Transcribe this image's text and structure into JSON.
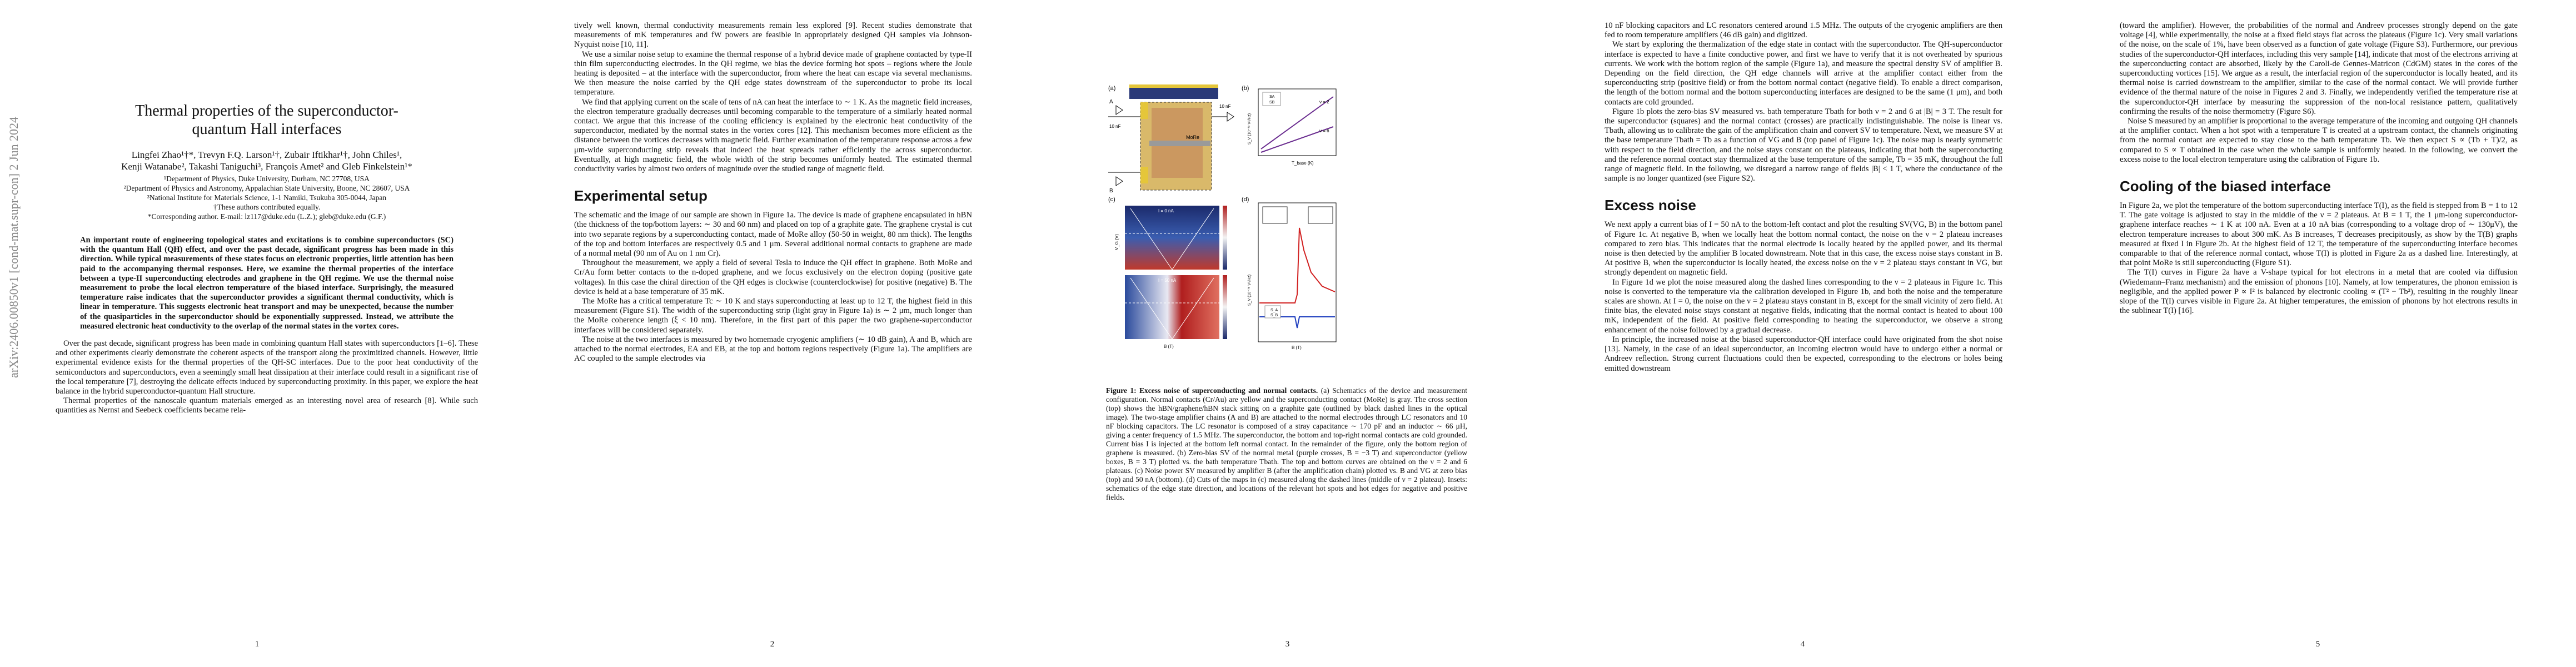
{
  "arxiv_stamp": "arXiv:2406.00850v1  [cond-mat.supr-con]  2 Jun 2024",
  "page1": {
    "title": "Thermal properties of the superconductor-quantum Hall interfaces",
    "authors_line1": "Lingfei Zhao¹†*, Trevyn F.Q. Larson¹†, Zubair Iftikhar¹†, John Chiles¹,",
    "authors_line2": "Kenji Watanabe², Takashi Taniguchi³, François Amet² and Gleb Finkelstein¹*",
    "affil1": "¹Department of Physics, Duke University, Durham, NC 27708, USA",
    "affil2": "²Department of Physics and Astronomy, Appalachian State University, Boone, NC 28607, USA",
    "affil3": "³National Institute for Materials Science, 1-1 Namiki, Tsukuba 305-0044, Japan",
    "affil4": "†These authors contributed equally.",
    "affil5": "*Corresponding author. E-mail: lz117@duke.edu (L.Z.); gleb@duke.edu (G.F.)",
    "abstract": "An important route of engineering topological states and excitations is to combine superconductors (SC) with the quantum Hall (QH) effect, and over the past decade, significant progress has been made in this direction. While typical measurements of these states focus on electronic properties, little attention has been paid to the accompanying thermal responses. Here, we examine the thermal properties of the interface between a type-II superconducting electrodes and graphene in the QH regime. We use the thermal noise measurement to probe the local electron temperature of the biased interface. Surprisingly, the measured temperature raise indicates that the superconductor provides a significant thermal conductivity, which is linear in temperature. This suggests electronic heat transport and may be unexpected, because the number of the quasiparticles in the superconductor should be exponentially suppressed. Instead, we attribute the measured electronic heat conductivity to the overlap of the normal states in the vortex cores.",
    "p1": "Over the past decade, significant progress has been made in combining quantum Hall states with superconductors [1–6]. These and other experiments clearly demonstrate the coherent aspects of the transport along the proximitized channels. However, little experimental evidence exists for the thermal properties of the QH-SC interfaces. Due to the poor heat conductivity of the semiconductors and superconductors, even a seemingly small heat dissipation at their interface could result in a significant rise of the local temperature [7], destroying the delicate effects induced by superconducting proximity. In this paper, we explore the heat balance in the hybrid superconductor-quantum Hall structure.",
    "p2": "Thermal properties of the nanoscale quantum materials emerged as an interesting novel area of research [8]. While such quantities as Nernst and Seebeck coefficients became rela-",
    "page_number": "1"
  },
  "page2": {
    "p1": "tively well known, thermal conductivity measurements remain less explored [9]. Recent studies demonstrate that measurements of mK temperatures and fW powers are feasible in appropriately designed QH samples via Johnson-Nyquist noise [10, 11].",
    "p2": "We use a similar noise setup to examine the thermal response of a hybrid device made of graphene contacted by type-II thin film superconducting electrodes. In the QH regime, we bias the device forming hot spots – regions where the Joule heating is deposited – at the interface with the superconductor, from where the heat can escape via several mechanisms. We then measure the noise carried by the QH edge states downstream of the superconductor to probe its local temperature.",
    "p3": "We find that applying current on the scale of tens of nA can heat the interface to ∼ 1 K. As the magnetic field increases, the electron temperature gradually decreases until becoming comparable to the temperature of a similarly heated normal contact. We argue that this increase of the cooling efficiency is explained by the electronic heat conductivity of the superconductor, mediated by the normal states in the vortex cores [12]. This mechanism becomes more efficient as the distance between the vortices decreases with magnetic field. Further examination of the temperature response across a few μm-wide superconducting strip reveals that indeed the heat spreads rather efficiently the across superconductor. Eventually, at high magnetic field, the whole width of the strip becomes uniformly heated. The estimated thermal conductivity varies by almost two orders of magnitude over the studied range of magnetic field.",
    "section": "Experimental setup",
    "p4": "The schematic and the image of our sample are shown in Figure 1a. The device is made of graphene encapsulated in hBN (the thickness of the top/bottom layers: ∼ 30 and 60 nm) and placed on top of a graphite gate. The graphene crystal is cut into two separate regions by a superconducting contact, made of MoRe alloy (50-50 in weight, 80 nm thick). The lengths of the top and bottom interfaces are respectively 0.5 and 1 μm. Several additional normal contacts to graphene are made of a normal metal (90 nm of Au on 1 nm Cr).",
    "p5": "Throughout the measurement, we apply a field of several Tesla to induce the QH effect in graphene. Both MoRe and Cr/Au form better contacts to the n-doped graphene, and we focus exclusively on the electron doping (positive gate voltages). In this case the chiral direction of the QH edges is clockwise (counterclockwise) for positive (negative) B. The device is held at a base temperature of 35 mK.",
    "p6": "The MoRe has a critical temperature Tc ∼ 10 K and stays superconducting at least up to 12 T, the highest field in this measurement (Figure S1). The width of the superconducting strip (light gray in Figure 1a) is ∼ 2 μm, much longer than the MoRe coherence length (ξ < 10 nm). Therefore, in the first part of this paper the two graphene-superconductor interfaces will be considered separately.",
    "p7": "The noise at the two interfaces is measured by two homemade cryogenic amplifiers (∼ 10 dB gain), A and B, which are attached to the normal electrodes, EA and EB, at the top and bottom regions respectively (Figure 1a). The amplifiers are AC coupled to the sample electrodes via",
    "page_number": "2"
  },
  "page3": {
    "fig_labels": {
      "a": "(a)",
      "b": "(b)",
      "c": "(c)",
      "d": "(d)"
    },
    "scheme": {
      "top_left": "10 nF",
      "mid_label": "MoRe",
      "side_a": "A",
      "side_b": "B",
      "cap_top": "10 nF",
      "rl": "R_L",
      "lc": "LC"
    },
    "panel_b": {
      "ylabel": "S_V (10⁻¹⁹ V²/Hz)",
      "xlabel": "T_base (K)",
      "legend": [
        "SA",
        "SB"
      ],
      "label_2": "ν = 2",
      "label_6": "ν = 6"
    },
    "panel_c": {
      "top_label": "I = 0 nA",
      "bottom_label": "I = 50 nA",
      "xlabel": "B (T)",
      "ylabel": "V_G (V)",
      "cbar_top": "R (kΩ)",
      "cbar_bottom": "S_V (10⁻¹⁸ V²/Hz)"
    },
    "panel_d": {
      "ylabel": "S_V (10⁻¹⁸ V²/Hz)",
      "xlabel": "B (T)",
      "legend": [
        "S_A",
        "S_B"
      ],
      "ticks": [
        "-4",
        "-2",
        "0",
        "2",
        "4"
      ]
    },
    "caption_bold": "Figure 1: Excess noise of superconducting and normal contacts.",
    "caption": "(a) Schematics of the device and measurement configuration. Normal contacts (Cr/Au) are yellow and the superconducting contact (MoRe) is gray. The cross section (top) shows the hBN/graphene/hBN stack sitting on a graphite gate (outlined by black dashed lines in the optical image). The two-stage amplifier chains (A and B) are attached to the normal electrodes through LC resonators and 10 nF blocking capacitors. The LC resonator is composed of a stray capacitance ∼ 170 pF and an inductor ∼ 66 μH, giving a center frequency of 1.5 MHz. The superconductor, the bottom and top-right normal contacts are cold grounded. Current bias I is injected at the bottom left normal contact. In the remainder of the figure, only the bottom region of graphene is measured. (b) Zero-bias SV of the normal metal (purple crosses, B = −3 T) and superconductor (yellow boxes, B = 3 T) plotted vs. the bath temperature Tbath. The top and bottom curves are obtained on the ν = 2 and 6 plateaus. (c) Noise power SV measured by amplifier B (after the amplification chain) plotted vs. B and VG at zero bias (top) and 50 nA (bottom). (d) Cuts of the maps in (c) measured along the dashed lines (middle of ν = 2 plateau). Insets: schematics of the edge state direction, and locations of the relevant hot spots and hot edges for negative and positive fields.",
    "page_number": "3"
  },
  "page4": {
    "p1": "10 nF blocking capacitors and LC resonators centered around 1.5 MHz. The outputs of the cryogenic amplifiers are then fed to room temperature amplifiers (46 dB gain) and digitized.",
    "p2": "We start by exploring the thermalization of the edge state in contact with the superconductor. The QH-superconductor interface is expected to have a finite conductive power, and first we have to verify that it is not overheated by spurious currents. We work with the bottom region of the sample (Figure 1a), and measure the spectral density SV of amplifier B. Depending on the field direction, the QH edge channels will arrive at the amplifier contact either from the superconducting strip (positive field) or from the bottom normal contact (negative field). To enable a direct comparison, the length of the bottom normal and the bottom superconducting interfaces are designed to be the same (1 μm), and both contacts are cold grounded.",
    "p3": "Figure 1b plots the zero-bias SV measured vs. bath temperature Tbath for both ν = 2 and 6 at |B| = 3 T. The result for the superconductor (squares) and the normal contact (crosses) are practically indistinguishable. The noise is linear vs. Tbath, allowing us to calibrate the gain of the amplification chain and convert SV to temperature. Next, we measure SV at the base temperature Tbath = Tb as a function of VG and B (top panel of Figure 1c). The noise map is nearly symmetric with respect to the field direction, and the noise stays constant on the plateaus, indicating that both the superconducting and the reference normal contact stay thermalized at the base temperature of the sample, Tb = 35 mK, throughout the full range of magnetic field. In the following, we disregard a narrow range of fields |B| < 1 T, where the conductance of the sample is no longer quantized (see Figure S2).",
    "section": "Excess noise",
    "p4": "We next apply a current bias of I = 50 nA to the bottom-left contact and plot the resulting SV(VG, B) in the bottom panel of Figure 1c. At negative B, when we locally heat the bottom normal contact, the noise on the ν = 2 plateau increases compared to zero bias. This indicates that the normal electrode is locally heated by the applied power, and its thermal noise is then detected by the amplifier B located downstream. Note that in this case, the excess noise stays constant in B. At positive B, when the superconductor is locally heated, the excess noise on the ν = 2 plateau stays constant in VG, but strongly dependent on magnetic field.",
    "p5": "In Figure 1d we plot the noise measured along the dashed lines corresponding to the ν = 2 plateaus in Figure 1c. This noise is converted to the temperature via the calibration developed in Figure 1b, and both the noise and the temperature scales are shown. At I = 0, the noise on the ν = 2 plateau stays constant in B, except for the small vicinity of zero field. At finite bias, the elevated noise stays constant at negative fields, indicating that the normal contact is heated to about 100 mK, independent of the field. At positive field corresponding to heating the superconductor, we observe a strong enhancement of the noise followed by a gradual decrease.",
    "p6": "In principle, the increased noise at the biased superconductor-QH interface could have originated from the shot noise [13]. Namely, in the case of an ideal superconductor, an incoming electron would have to undergo either a normal or Andreev reflection. Strong current fluctuations could then be expected, corresponding to the electrons or holes being emitted downstream",
    "page_number": "4"
  },
  "page5": {
    "p1": "(toward the amplifier). However, the probabilities of the normal and Andreev processes strongly depend on the gate voltage [4], while experimentally, the noise at a fixed field stays flat across the plateaus (Figure 1c). Very small variations of the noise, on the scale of 1%, have been observed as a function of gate voltage (Figure S3). Furthermore, our previous studies of the superconductor-QH interfaces, including this very sample [14], indicate that most of the electrons arriving at the superconducting contact are absorbed, likely by the Caroli-de Gennes-Matricon (CdGM) states in the cores of the superconducting vortices [15]. We argue as a result, the interfacial region of the superconductor is locally heated, and its thermal noise is carried downstream to the amplifier, similar to the case of the normal contact. We will provide further evidence of the thermal nature of the noise in Figures 2 and 3. Finally, we independently verified the temperature rise at the superconductor-QH interface by measuring the suppression of the non-local resistance pattern, qualitatively confirming the results of the noise thermometry (Figure S6).",
    "p2": "Noise S measured by an amplifier is proportional to the average temperature of the incoming and outgoing QH channels at the amplifier contact. When a hot spot with a temperature T is created at a upstream contact, the channels originating from the normal contact are expected to stay close to the bath temperature Tb. We then expect S ∝ (Tb + T)/2, as compared to S ∝ T obtained in the case when the whole sample is uniformly heated. In the following, we convert the excess noise to the local electron temperature using the calibration of Figure 1b.",
    "section": "Cooling of the biased interface",
    "p3": "In Figure 2a, we plot the temperature of the bottom superconducting interface T(I), as the field is stepped from B = 1 to 12 T. The gate voltage is adjusted to stay in the middle of the ν = 2 plateaus. At B = 1 T, the 1 μm-long superconductor-graphene interface reaches ∼ 1 K at 100 nA. Even at a 10 nA bias (corresponding to a voltage drop of ∼ 130μV), the electron temperature increases to about 300 mK. As B increases, T decreases precipitously, as show by the T(B) graphs measured at fixed I in Figure 2b. At the highest field of 12 T, the temperature of the superconducting interface becomes comparable to that of the reference normal contact, whose T(I) is plotted in Figure 2a as a dashed line. Interestingly, at that point MoRe is still superconducting (Figure S1).",
    "p4": "The T(I) curves in Figure 2a have a V-shape typical for hot electrons in a metal that are cooled via diffusion (Wiedemann–Franz mechanism) and the emission of phonons [10]. Namely, at low temperatures, the phonon emission is negligible, and the applied power P ∝ I² is balanced by electronic cooling ∝ (T² − Tb²), resulting in the roughly linear slope of the T(I) curves visible in Figure 2a. At higher temperatures, the emission of phonons by hot electrons results in the sublinear T(I) [16].",
    "page_number": "5"
  }
}
